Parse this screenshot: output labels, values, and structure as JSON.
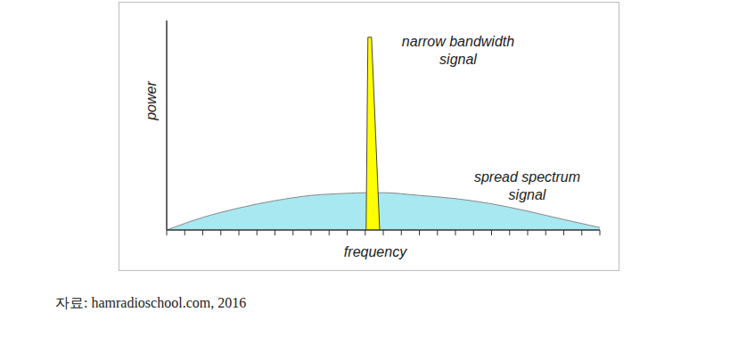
{
  "chart_data": {
    "type": "area",
    "x_label": "frequency",
    "y_label": "power",
    "xlim": [
      0,
      24
    ],
    "xticks": [
      0,
      1,
      2,
      3,
      4,
      5,
      6,
      7,
      8,
      9,
      10,
      11,
      12,
      13,
      14,
      15,
      16,
      17,
      18,
      19,
      20,
      21,
      22,
      23,
      24
    ],
    "ylim": [
      0,
      10
    ],
    "yticks": [],
    "tick_labels": false,
    "grid": false,
    "series": [
      {
        "name": "spread spectrum signal",
        "color": "#a8e8f0",
        "x": [
          0,
          2,
          4,
          6,
          8,
          10,
          11,
          12,
          14,
          16,
          18,
          20,
          22,
          24
        ],
        "values": [
          0,
          0.6,
          1.05,
          1.4,
          1.65,
          1.75,
          1.78,
          1.78,
          1.65,
          1.5,
          1.25,
          0.9,
          0.5,
          0.12
        ]
      },
      {
        "name": "narrow bandwidth signal",
        "color": "#ffff00",
        "x": [
          11.05,
          11.15,
          11.35,
          11.8
        ],
        "values": [
          0,
          9.2,
          9.2,
          0
        ]
      }
    ]
  },
  "source": "자료: hamradioschool.com, 2016"
}
